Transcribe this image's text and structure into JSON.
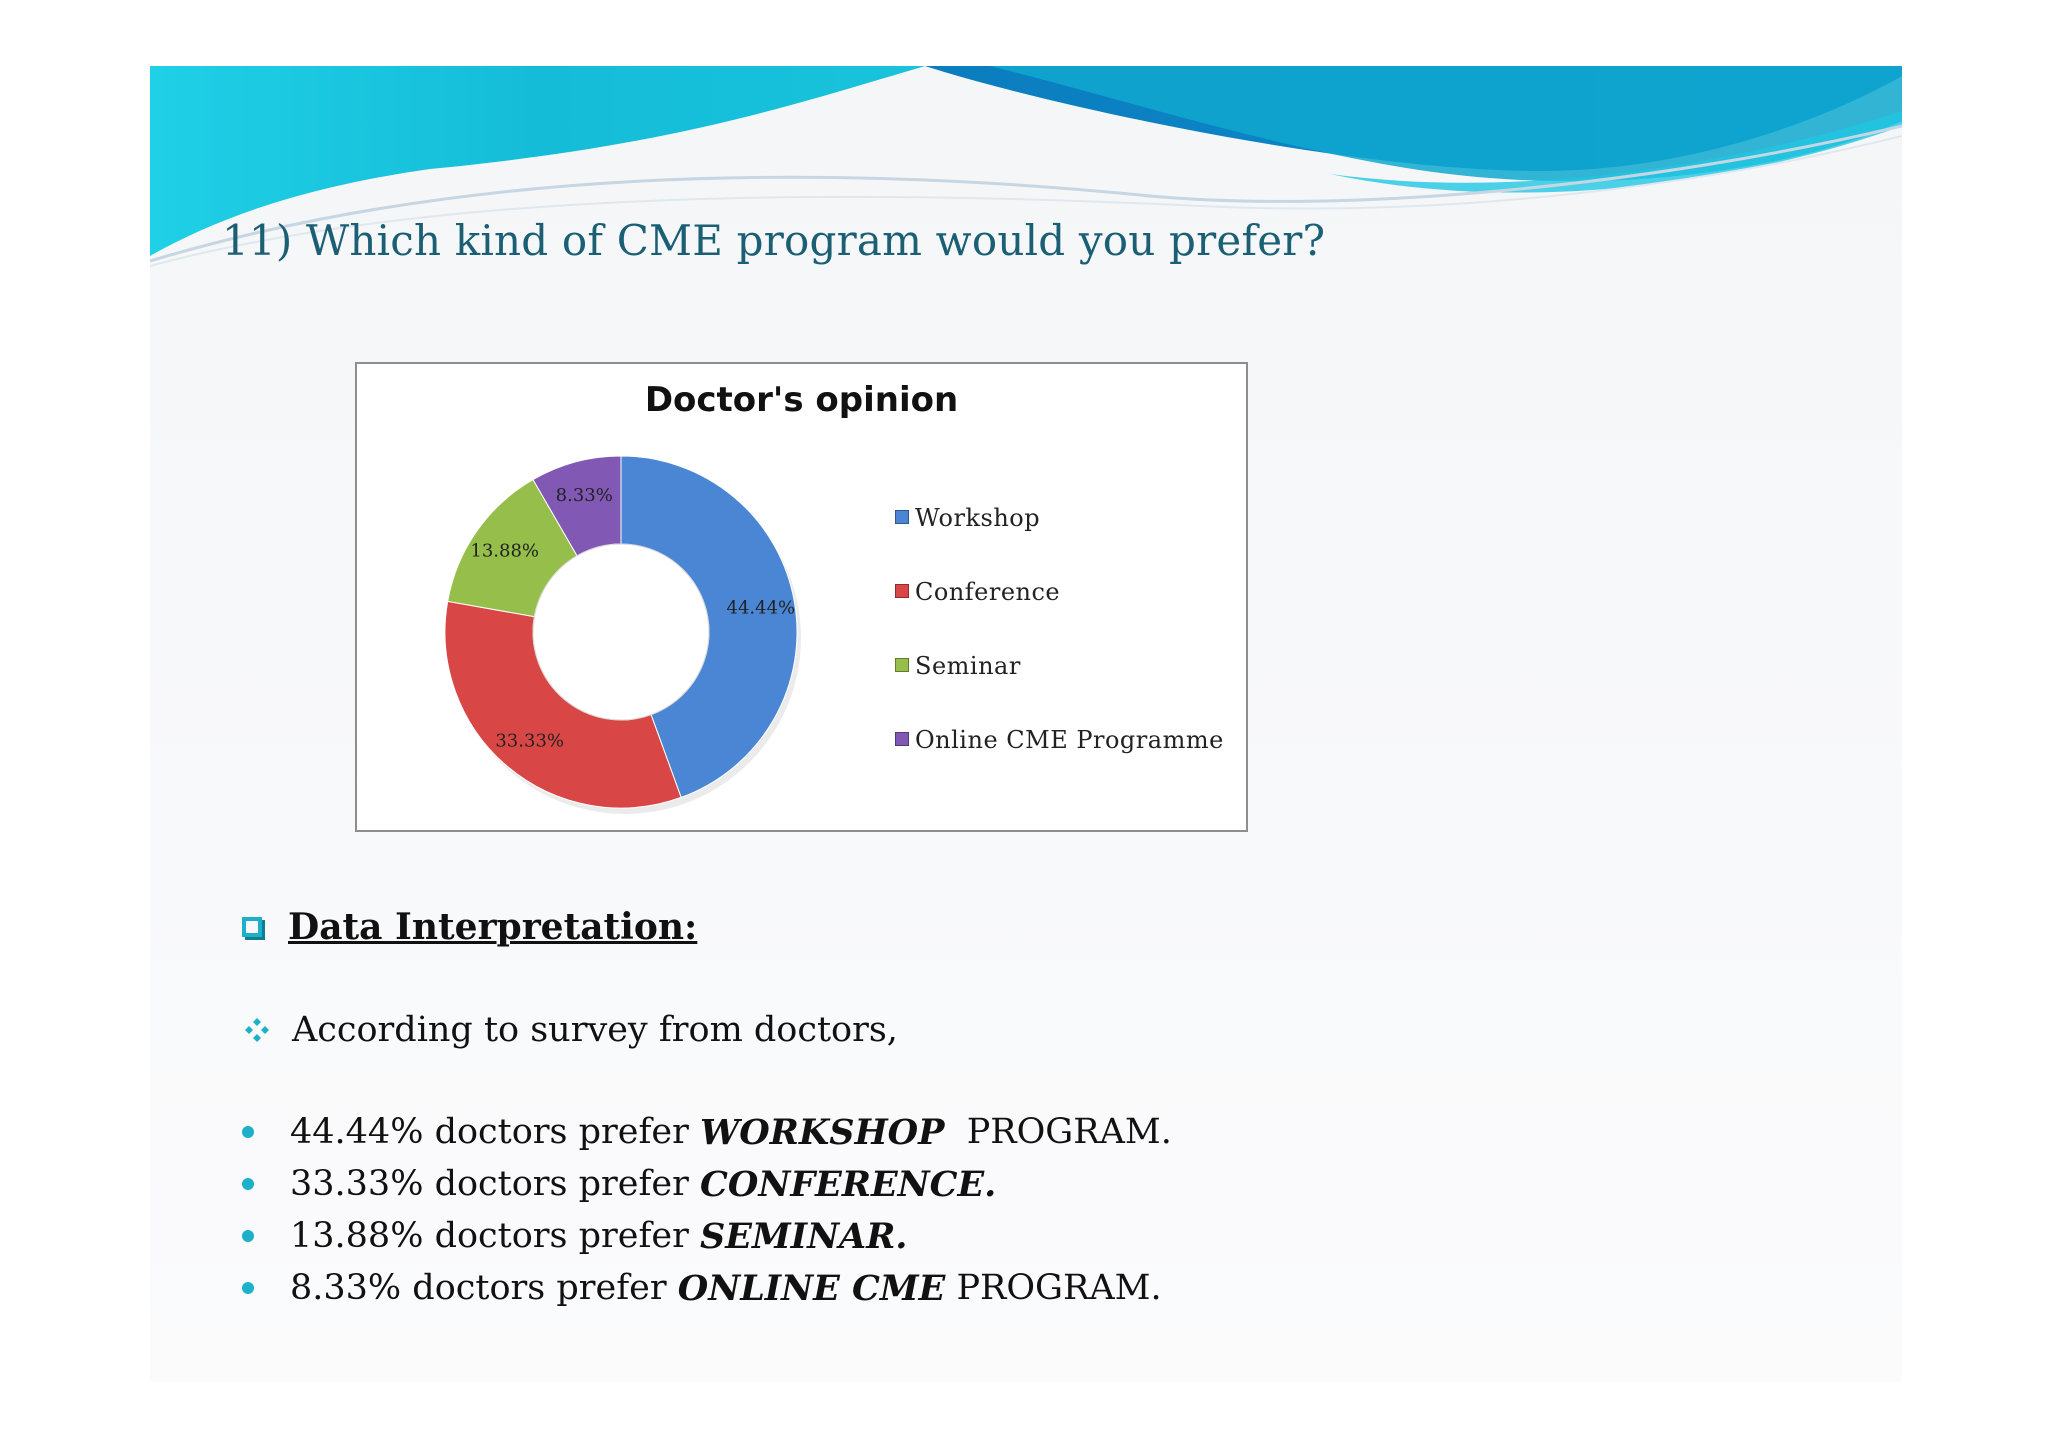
{
  "slide": {
    "title": "11) Which kind of CME program would you prefer?"
  },
  "colors": {
    "title_text": "#1b5f74",
    "bullet_accent": "#1cb1c9",
    "workshop": "#4a86d4",
    "conference": "#d94646",
    "seminar": "#95be4a",
    "online": "#8158b3"
  },
  "chart_data": {
    "type": "pie",
    "style": "donut",
    "title": "Doctor's opinion",
    "categories": [
      "Workshop",
      "Conference",
      "Seminar",
      "Online CME Programme"
    ],
    "values": [
      44.44,
      33.33,
      13.88,
      8.33
    ],
    "data_labels": [
      "44.44%",
      "33.33%",
      "13.88%",
      "8.33%"
    ],
    "colors": [
      "#4a86d4",
      "#d94646",
      "#95be4a",
      "#8158b3"
    ],
    "legend_position": "right"
  },
  "interpretation": {
    "heading": "Data Interpretation:",
    "intro": "According to survey from doctors,",
    "items": [
      {
        "prefix": "44.44% doctors prefer ",
        "emphasis": "WORKSHOP",
        "suffix": "  PROGRAM."
      },
      {
        "prefix": "33.33% doctors prefer ",
        "emphasis": "CONFERENCE.",
        "suffix": ""
      },
      {
        "prefix": "13.88% doctors prefer ",
        "emphasis": "SEMINAR.",
        "suffix": ""
      },
      {
        "prefix": "8.33% doctors prefer ",
        "emphasis": "ONLINE CME",
        "suffix": " PROGRAM."
      }
    ]
  }
}
